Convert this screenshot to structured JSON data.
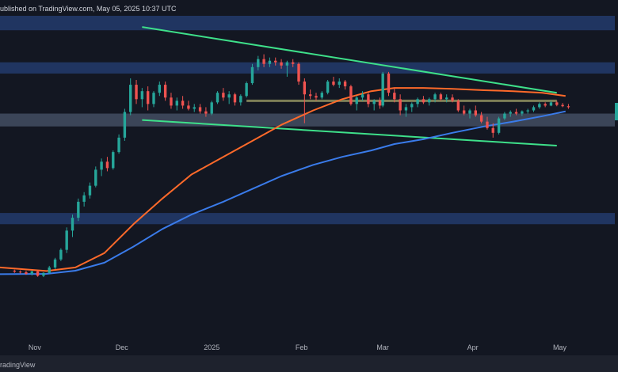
{
  "header": {
    "published_text": "ublished on TradingView.com, May 05, 2025 10:37 UTC"
  },
  "footer": {
    "brand_text": "radingView"
  },
  "colors": {
    "background": "#131722",
    "zone_blue": "#2a4a8c",
    "zone_grey": "#5d6b85",
    "trendline": "#3ee08a",
    "ma_short": "#ff6a2a",
    "ma_long": "#3a7bea",
    "candle_up": "#26a69a",
    "candle_down": "#ef5350",
    "level_line": "#8a8a5c",
    "axis_text": "#b2b5be"
  },
  "chart_data": {
    "type": "candlestick",
    "title": "",
    "x_axis": {
      "tick_labels": [
        "Nov",
        "Dec",
        "2025",
        "Feb",
        "Mar",
        "Apr",
        "May"
      ],
      "tick_dates": [
        "2024-11-01",
        "2024-12-01",
        "2025-01-01",
        "2025-02-01",
        "2025-03-01",
        "2025-04-01",
        "2025-05-01"
      ],
      "range": [
        "2024-10-20",
        "2025-05-20"
      ]
    },
    "y_axis": {
      "visible_labels": false,
      "range": [
        0,
        100
      ]
    },
    "grid": false,
    "legend": "none",
    "zones": [
      {
        "name": "resistance-zone-top",
        "low": 95.5,
        "high": 100,
        "color": "blue"
      },
      {
        "name": "resistance-zone-upper",
        "low": 82,
        "high": 85.5,
        "color": "blue"
      },
      {
        "name": "support-zone-mid",
        "low": 65.5,
        "high": 69.5,
        "color": "grey"
      },
      {
        "name": "support-zone-lower",
        "low": 35,
        "high": 38.5,
        "color": "blue"
      }
    ],
    "trendlines": [
      {
        "name": "wedge-upper-trendline",
        "from": [
          "2024-12-08",
          96.5
        ],
        "to": [
          "2025-04-30",
          76.0
        ]
      },
      {
        "name": "wedge-lower-trendline",
        "from": [
          "2024-12-08",
          67.5
        ],
        "to": [
          "2025-04-30",
          59.5
        ]
      }
    ],
    "levels": [
      {
        "name": "horizontal-level",
        "value": 73.5,
        "from": "2025-01-13",
        "to": "2025-04-30"
      }
    ],
    "series": [
      {
        "kind": "ma_short",
        "points": [
          [
            "2024-10-20",
            21.5
          ],
          [
            "2024-11-05",
            20.4
          ],
          [
            "2024-11-15",
            21.5
          ],
          [
            "2024-11-25",
            26
          ],
          [
            "2024-12-05",
            35
          ],
          [
            "2024-12-15",
            43
          ],
          [
            "2024-12-25",
            50.5
          ],
          [
            "2025-01-05",
            56
          ],
          [
            "2025-01-15",
            61
          ],
          [
            "2025-01-25",
            66
          ],
          [
            "2025-02-05",
            70.5
          ],
          [
            "2025-02-15",
            74
          ],
          [
            "2025-02-25",
            76.5
          ],
          [
            "2025-03-05",
            77.5
          ],
          [
            "2025-03-15",
            77.5
          ],
          [
            "2025-03-25",
            77.2
          ],
          [
            "2025-04-05",
            76.8
          ],
          [
            "2025-04-15",
            76.5
          ],
          [
            "2025-04-25",
            76
          ],
          [
            "2025-05-03",
            75
          ]
        ]
      },
      {
        "kind": "ma_long",
        "points": [
          [
            "2024-10-20",
            19.4
          ],
          [
            "2024-11-05",
            19.5
          ],
          [
            "2024-11-15",
            20.5
          ],
          [
            "2024-11-25",
            23
          ],
          [
            "2024-12-05",
            28
          ],
          [
            "2024-12-15",
            33.5
          ],
          [
            "2024-12-25",
            38
          ],
          [
            "2025-01-05",
            42
          ],
          [
            "2025-01-15",
            46
          ],
          [
            "2025-01-25",
            50
          ],
          [
            "2025-02-05",
            53.5
          ],
          [
            "2025-02-15",
            56
          ],
          [
            "2025-02-25",
            58
          ],
          [
            "2025-03-05",
            60
          ],
          [
            "2025-03-15",
            61.5
          ],
          [
            "2025-03-25",
            63.5
          ],
          [
            "2025-04-05",
            65.5
          ],
          [
            "2025-04-15",
            67
          ],
          [
            "2025-04-25",
            68.7
          ],
          [
            "2025-05-03",
            70.2
          ]
        ]
      }
    ],
    "candles": [
      [
        "2024-10-25",
        20.5,
        20.8,
        19.8,
        20.2
      ],
      [
        "2024-10-27",
        20.2,
        20.6,
        19.6,
        20.0
      ],
      [
        "2024-10-29",
        20.0,
        20.5,
        19.2,
        19.5
      ],
      [
        "2024-10-31",
        19.5,
        20.5,
        19.0,
        20.3
      ],
      [
        "2024-11-02",
        20.3,
        20.6,
        18.6,
        18.9
      ],
      [
        "2024-11-04",
        18.9,
        20.0,
        18.5,
        19.8
      ],
      [
        "2024-11-06",
        19.8,
        22.0,
        19.6,
        21.5
      ],
      [
        "2024-11-08",
        21.5,
        24.5,
        21.0,
        24.0
      ],
      [
        "2024-11-10",
        24.0,
        27.5,
        23.5,
        27.0
      ],
      [
        "2024-11-12",
        27.0,
        34.0,
        26.0,
        33.0
      ],
      [
        "2024-11-14",
        33.0,
        38.0,
        31.0,
        37.0
      ],
      [
        "2024-11-16",
        37.0,
        43.0,
        36.0,
        42.0
      ],
      [
        "2024-11-18",
        42.0,
        45.0,
        40.5,
        44.0
      ],
      [
        "2024-11-20",
        44.0,
        48.0,
        43.0,
        47.0
      ],
      [
        "2024-11-22",
        47.0,
        53.0,
        46.5,
        52.0
      ],
      [
        "2024-11-24",
        52.0,
        55.5,
        50.0,
        54.5
      ],
      [
        "2024-11-26",
        54.5,
        56.0,
        51.5,
        52.5
      ],
      [
        "2024-11-28",
        52.5,
        58.0,
        52.0,
        57.5
      ],
      [
        "2024-11-30",
        57.5,
        63.0,
        57.0,
        62.0
      ],
      [
        "2024-12-02",
        62.0,
        71.0,
        61.0,
        70.0
      ],
      [
        "2024-12-04",
        70.0,
        80.5,
        69.0,
        78.5
      ],
      [
        "2024-12-06",
        78.5,
        80.0,
        72.5,
        74.0
      ],
      [
        "2024-12-08",
        74.0,
        77.5,
        71.5,
        76.5
      ],
      [
        "2024-12-10",
        76.5,
        78.0,
        70.5,
        72.5
      ],
      [
        "2024-12-12",
        72.5,
        76.5,
        71.5,
        76.0
      ],
      [
        "2024-12-14",
        76.0,
        79.5,
        75.0,
        78.5
      ],
      [
        "2024-12-16",
        78.5,
        79.5,
        73.5,
        74.5
      ],
      [
        "2024-12-18",
        74.5,
        76.0,
        71.0,
        72.0
      ],
      [
        "2024-12-20",
        72.0,
        74.5,
        70.5,
        73.5
      ],
      [
        "2024-12-22",
        73.5,
        75.0,
        71.0,
        72.0
      ],
      [
        "2024-12-24",
        72.0,
        73.5,
        70.5,
        71.0
      ],
      [
        "2024-12-26",
        71.0,
        72.5,
        70.0,
        71.5
      ],
      [
        "2024-12-28",
        71.5,
        72.5,
        69.5,
        70.2
      ],
      [
        "2024-12-30",
        70.2,
        71.5,
        68.5,
        69.5
      ],
      [
        "2025-01-01",
        69.5,
        73.5,
        69.0,
        73.0
      ],
      [
        "2025-01-03",
        73.0,
        76.5,
        72.5,
        76.0
      ],
      [
        "2025-01-05",
        76.0,
        77.5,
        73.5,
        74.5
      ],
      [
        "2025-01-07",
        74.5,
        76.5,
        72.5,
        75.5
      ],
      [
        "2025-01-09",
        75.5,
        76.0,
        72.0,
        73.0
      ],
      [
        "2025-01-11",
        73.0,
        75.5,
        72.0,
        75.0
      ],
      [
        "2025-01-13",
        75.0,
        79.5,
        74.5,
        79.0
      ],
      [
        "2025-01-15",
        79.0,
        85.0,
        78.5,
        84.0
      ],
      [
        "2025-01-17",
        84.0,
        87.5,
        83.0,
        86.5
      ],
      [
        "2025-01-19",
        86.5,
        88.0,
        84.0,
        85.0
      ],
      [
        "2025-01-21",
        85.0,
        87.0,
        84.0,
        86.0
      ],
      [
        "2025-01-23",
        86.0,
        87.0,
        84.5,
        85.5
      ],
      [
        "2025-01-25",
        85.5,
        86.5,
        83.5,
        84.5
      ],
      [
        "2025-01-27",
        84.5,
        86.0,
        81.0,
        85.5
      ],
      [
        "2025-01-29",
        85.5,
        86.5,
        84.0,
        85.0
      ],
      [
        "2025-01-31",
        85.0,
        85.5,
        78.5,
        79.5
      ],
      [
        "2025-02-02",
        79.5,
        80.5,
        66.5,
        75.5
      ],
      [
        "2025-02-04",
        75.5,
        77.0,
        74.0,
        75.0
      ],
      [
        "2025-02-06",
        75.0,
        76.0,
        73.5,
        74.5
      ],
      [
        "2025-02-08",
        74.5,
        76.5,
        74.0,
        76.0
      ],
      [
        "2025-02-10",
        76.0,
        80.0,
        75.5,
        79.5
      ],
      [
        "2025-02-12",
        79.5,
        81.0,
        78.0,
        78.5
      ],
      [
        "2025-02-14",
        78.5,
        80.5,
        77.5,
        79.5
      ],
      [
        "2025-02-16",
        79.5,
        80.0,
        77.0,
        78.0
      ],
      [
        "2025-02-18",
        78.0,
        78.5,
        72.0,
        72.5
      ],
      [
        "2025-02-20",
        72.5,
        75.0,
        70.5,
        74.5
      ],
      [
        "2025-02-22",
        74.5,
        76.5,
        73.5,
        75.5
      ],
      [
        "2025-02-24",
        75.5,
        76.0,
        71.5,
        72.5
      ],
      [
        "2025-02-26",
        72.5,
        74.0,
        70.5,
        73.5
      ],
      [
        "2025-02-28",
        73.5,
        74.5,
        71.0,
        72.0
      ],
      [
        "2025-03-01",
        72.0,
        82.5,
        71.5,
        82.0
      ],
      [
        "2025-03-03",
        82.0,
        82.5,
        75.0,
        76.0
      ],
      [
        "2025-03-05",
        76.0,
        77.5,
        73.0,
        74.0
      ],
      [
        "2025-03-07",
        74.0,
        75.5,
        69.0,
        70.5
      ],
      [
        "2025-03-09",
        70.5,
        72.5,
        68.5,
        71.5
      ],
      [
        "2025-03-11",
        71.5,
        73.0,
        70.0,
        72.5
      ],
      [
        "2025-03-13",
        72.5,
        74.5,
        71.5,
        74.0
      ],
      [
        "2025-03-15",
        74.0,
        75.0,
        72.5,
        73.0
      ],
      [
        "2025-03-17",
        73.0,
        74.5,
        72.0,
        74.0
      ],
      [
        "2025-03-19",
        74.0,
        76.0,
        73.0,
        75.5
      ],
      [
        "2025-03-21",
        75.5,
        76.0,
        73.5,
        74.0
      ],
      [
        "2025-03-23",
        74.0,
        75.5,
        73.0,
        74.5
      ],
      [
        "2025-03-25",
        74.5,
        75.5,
        73.0,
        73.5
      ],
      [
        "2025-03-27",
        73.5,
        74.0,
        70.0,
        70.5
      ],
      [
        "2025-03-29",
        70.5,
        72.0,
        69.0,
        69.5
      ],
      [
        "2025-03-31",
        69.5,
        71.0,
        68.0,
        70.5
      ],
      [
        "2025-04-02",
        70.5,
        72.0,
        68.5,
        69.0
      ],
      [
        "2025-04-04",
        69.0,
        70.0,
        66.5,
        67.0
      ],
      [
        "2025-04-06",
        67.0,
        68.5,
        64.5,
        65.0
      ],
      [
        "2025-04-08",
        65.0,
        66.5,
        62.0,
        63.5
      ],
      [
        "2025-04-10",
        63.5,
        68.5,
        63.0,
        68.0
      ],
      [
        "2025-04-12",
        68.0,
        70.0,
        67.5,
        69.5
      ],
      [
        "2025-04-14",
        69.5,
        70.5,
        68.5,
        70.0
      ],
      [
        "2025-04-16",
        70.0,
        71.0,
        69.0,
        69.5
      ],
      [
        "2025-04-18",
        69.5,
        70.5,
        68.8,
        70.2
      ],
      [
        "2025-04-20",
        70.2,
        71.0,
        69.5,
        70.5
      ],
      [
        "2025-04-22",
        70.5,
        72.0,
        70.0,
        71.5
      ],
      [
        "2025-04-24",
        71.5,
        73.0,
        71.0,
        72.5
      ],
      [
        "2025-04-26",
        72.5,
        73.0,
        71.5,
        72.0
      ],
      [
        "2025-04-28",
        72.0,
        73.5,
        71.8,
        73.0
      ],
      [
        "2025-04-30",
        73.0,
        73.5,
        71.8,
        72.2
      ],
      [
        "2025-05-02",
        72.2,
        72.8,
        71.5,
        71.8
      ],
      [
        "2025-05-04",
        71.8,
        72.5,
        71.0,
        71.5
      ]
    ]
  }
}
